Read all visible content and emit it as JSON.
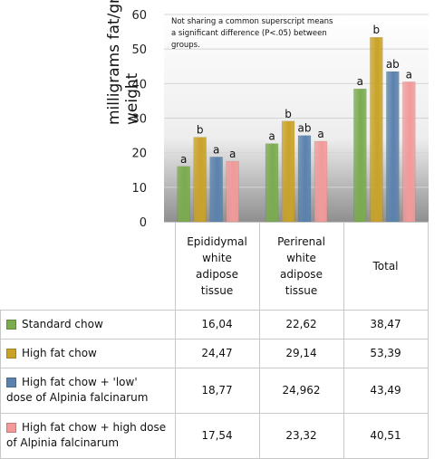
{
  "note": {
    "line1": "Not sharing a common superscript means",
    "line2": "a significant difference (P<.05) between",
    "line3": "groups."
  },
  "chart_data": {
    "type": "bar",
    "ylabel": "milligrams fat/gram body weight",
    "ylim": [
      0,
      60
    ],
    "yticks": [
      "0",
      "10",
      "20",
      "30",
      "40",
      "50",
      "60"
    ],
    "categories": [
      [
        "Epididymal",
        "white",
        "adipose",
        "tissue"
      ],
      [
        "Perirenal",
        "white",
        "adipose",
        "tissue"
      ],
      [
        "Total"
      ]
    ],
    "series": [
      {
        "name": "Standard chow",
        "color": "#7aab4f",
        "values": [
          16.04,
          22.62,
          38.47
        ],
        "letters": [
          "a",
          "a",
          "a"
        ]
      },
      {
        "name": "High fat chow",
        "color": "#c9a227",
        "values": [
          24.47,
          29.14,
          53.39
        ],
        "letters": [
          "b",
          "b",
          "b"
        ]
      },
      {
        "name": "High fat chow + 'low' dose of Alpinia falcinarum",
        "color": "#5a82ad",
        "values": [
          18.77,
          24.962,
          43.49
        ],
        "letters": [
          "a",
          "ab",
          "ab"
        ]
      },
      {
        "name": "High fat chow + high dose of Alpinia falcinarum",
        "color": "#f29a9a",
        "values": [
          17.54,
          23.32,
          40.51
        ],
        "letters": [
          "a",
          "a",
          "a"
        ]
      }
    ],
    "table": {
      "rows": [
        {
          "label_lines": [
            "Standard chow"
          ],
          "values": [
            "16,04",
            "22,62",
            "38,47"
          ]
        },
        {
          "label_lines": [
            "High fat chow"
          ],
          "values": [
            "24,47",
            "29,14",
            "53,39"
          ]
        },
        {
          "label_lines": [
            "High fat chow + 'low'",
            "dose of Alpinia falcinarum"
          ],
          "values": [
            "18,77",
            "24,962",
            "43,49"
          ]
        },
        {
          "label_lines": [
            "High fat chow + high dose",
            "of Alpinia falcinarum"
          ],
          "values": [
            "17,54",
            "23,32",
            "40,51"
          ]
        }
      ]
    },
    "grid": true,
    "legend": "table"
  }
}
